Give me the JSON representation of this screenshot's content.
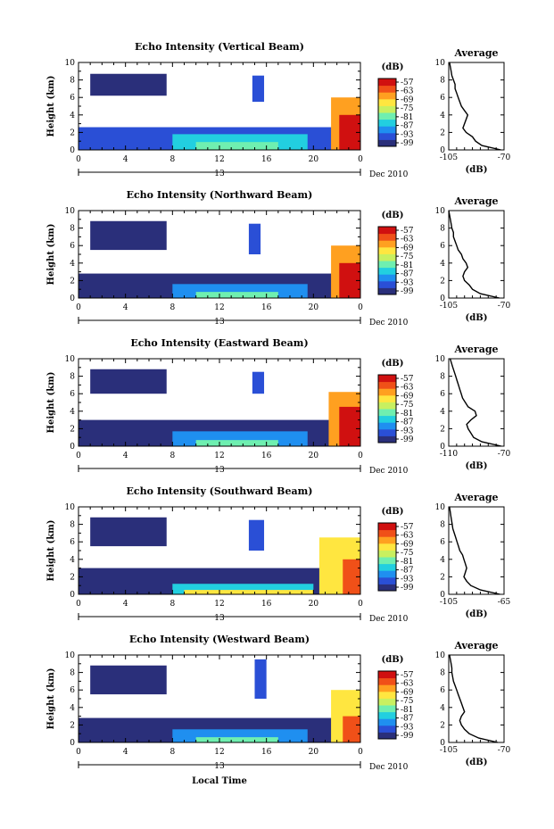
{
  "figure": {
    "x_axis_label": "Local Time",
    "date_label": "Dec 2010",
    "day_label": "13",
    "colorbar_unit": "(dB)",
    "colorbar_ticks": [
      "-57",
      "-63",
      "-69",
      "-75",
      "-81",
      "-87",
      "-93",
      "-99"
    ],
    "colorbar_colors": [
      "#2a2f7a",
      "#2a4fd6",
      "#1f8ff0",
      "#22cfe0",
      "#6fefb0",
      "#c8f060",
      "#ffe640",
      "#ffa020",
      "#f05018",
      "#d01010"
    ]
  },
  "chart_data": [
    {
      "type": "heatmap",
      "title": "Echo Intensity (Vertical Beam)",
      "ylabel": "Height (km)",
      "ylim": [
        0,
        10
      ],
      "xlim": [
        0,
        24
      ],
      "x_ticks": [
        "0",
        "4",
        "8",
        "12",
        "16",
        "20",
        "0"
      ],
      "y_ticks": [
        "0",
        "2",
        "4",
        "6",
        "8",
        "10"
      ],
      "zlim": [
        -99,
        -57
      ],
      "regions": [
        {
          "x0": 1,
          "x1": 7.5,
          "y0": 6.2,
          "y1": 8.7,
          "value": -95
        },
        {
          "x0": 14.8,
          "x1": 15.8,
          "y0": 5.5,
          "y1": 8.5,
          "value": -92
        },
        {
          "x0": 0,
          "x1": 24,
          "y0": 0,
          "y1": 2.6,
          "value": -94
        },
        {
          "x0": 8,
          "x1": 19.5,
          "y0": 0,
          "y1": 1.8,
          "value": -86
        },
        {
          "x0": 10,
          "x1": 17,
          "y0": 0,
          "y1": 0.9,
          "value": -79
        },
        {
          "x0": 21.5,
          "x1": 24,
          "y0": 0,
          "y1": 6,
          "value": -68
        },
        {
          "x0": 22.2,
          "x1": 24,
          "y0": 0,
          "y1": 4,
          "value": -60
        }
      ],
      "profile": {
        "title": "Average",
        "xlabel": "(dB)",
        "xlim": [
          -105,
          -70
        ],
        "x_ticks": [
          "-105",
          "-70"
        ],
        "height_km": [
          0,
          0.5,
          1,
          1.5,
          2,
          2.5,
          3,
          3.5,
          4,
          4.5,
          5,
          5.5,
          6,
          6.5,
          7,
          7.5,
          8,
          8.5,
          9,
          9.5,
          10
        ],
        "db": [
          -72,
          -84,
          -88,
          -90,
          -94,
          -96,
          -95,
          -94,
          -93,
          -95,
          -97,
          -98,
          -99,
          -100,
          -101,
          -101,
          -102,
          -103,
          -103.5,
          -104,
          -104.5
        ]
      }
    },
    {
      "type": "heatmap",
      "title": "Echo Intensity (Northward Beam)",
      "ylabel": "Height (km)",
      "ylim": [
        0,
        10
      ],
      "xlim": [
        0,
        24
      ],
      "x_ticks": [
        "0",
        "4",
        "8",
        "12",
        "16",
        "20",
        "0"
      ],
      "y_ticks": [
        "0",
        "2",
        "4",
        "6",
        "8",
        "10"
      ],
      "zlim": [
        -99,
        -57
      ],
      "regions": [
        {
          "x0": 1,
          "x1": 7.5,
          "y0": 5.5,
          "y1": 8.8,
          "value": -95
        },
        {
          "x0": 14.5,
          "x1": 15.5,
          "y0": 5,
          "y1": 8.5,
          "value": -92
        },
        {
          "x0": 0,
          "x1": 24,
          "y0": 0,
          "y1": 2.8,
          "value": -95
        },
        {
          "x0": 8,
          "x1": 19.5,
          "y0": 0,
          "y1": 1.6,
          "value": -87
        },
        {
          "x0": 10,
          "x1": 17,
          "y0": 0,
          "y1": 0.7,
          "value": -80
        },
        {
          "x0": 21.5,
          "x1": 24,
          "y0": 0,
          "y1": 6,
          "value": -68
        },
        {
          "x0": 22.2,
          "x1": 24,
          "y0": 0,
          "y1": 4,
          "value": -60
        }
      ],
      "profile": {
        "title": "Average",
        "xlabel": "(dB)",
        "xlim": [
          -105,
          -70
        ],
        "x_ticks": [
          "-105",
          "-70"
        ],
        "height_km": [
          0,
          0.5,
          1,
          1.5,
          2,
          2.5,
          3,
          3.5,
          4,
          4.5,
          5,
          5.5,
          6,
          6.5,
          7,
          7.5,
          8,
          8.5,
          9,
          9.5,
          10
        ],
        "db": [
          -73,
          -85,
          -90,
          -92,
          -95,
          -96,
          -95,
          -93,
          -94,
          -96,
          -97,
          -99,
          -100,
          -101,
          -102,
          -102,
          -103,
          -103.5,
          -104,
          -104.5,
          -105
        ]
      }
    },
    {
      "type": "heatmap",
      "title": "Echo Intensity (Eastward Beam)",
      "ylabel": "Height (km)",
      "ylim": [
        0,
        10
      ],
      "xlim": [
        0,
        24
      ],
      "x_ticks": [
        "0",
        "4",
        "8",
        "12",
        "16",
        "20",
        "0"
      ],
      "y_ticks": [
        "0",
        "2",
        "4",
        "6",
        "8",
        "10"
      ],
      "zlim": [
        -99,
        -57
      ],
      "regions": [
        {
          "x0": 1,
          "x1": 7.5,
          "y0": 6,
          "y1": 8.8,
          "value": -95
        },
        {
          "x0": 14.8,
          "x1": 15.8,
          "y0": 6,
          "y1": 8.5,
          "value": -92
        },
        {
          "x0": 0,
          "x1": 24,
          "y0": 0,
          "y1": 3,
          "value": -95
        },
        {
          "x0": 8,
          "x1": 19.5,
          "y0": 0,
          "y1": 1.7,
          "value": -87
        },
        {
          "x0": 10,
          "x1": 17,
          "y0": 0,
          "y1": 0.7,
          "value": -80
        },
        {
          "x0": 21.3,
          "x1": 24,
          "y0": 0,
          "y1": 6.2,
          "value": -68
        },
        {
          "x0": 22.2,
          "x1": 24,
          "y0": 0,
          "y1": 4.5,
          "value": -60
        }
      ],
      "profile": {
        "title": "Average",
        "xlabel": "(dB)",
        "xlim": [
          -110,
          -70
        ],
        "x_ticks": [
          "-110",
          "-70"
        ],
        "height_km": [
          0,
          0.5,
          1,
          1.5,
          2,
          2.5,
          3,
          3.5,
          4,
          4.5,
          5,
          5.5,
          6,
          6.5,
          7,
          7.5,
          8,
          8.5,
          9,
          9.5,
          10
        ],
        "db": [
          -72,
          -86,
          -92,
          -94,
          -96,
          -97,
          -94,
          -90,
          -91,
          -96,
          -98,
          -100,
          -101,
          -102,
          -103,
          -104,
          -105,
          -106,
          -107,
          -108,
          -109
        ]
      }
    },
    {
      "type": "heatmap",
      "title": "Echo Intensity (Southward Beam)",
      "ylabel": "Height (km)",
      "ylim": [
        0,
        10
      ],
      "xlim": [
        0,
        24
      ],
      "x_ticks": [
        "0",
        "4",
        "8",
        "12",
        "16",
        "20",
        "0"
      ],
      "y_ticks": [
        "0",
        "2",
        "4",
        "6",
        "8",
        "10"
      ],
      "zlim": [
        -99,
        -57
      ],
      "regions": [
        {
          "x0": 1,
          "x1": 7.5,
          "y0": 5.5,
          "y1": 8.8,
          "value": -95
        },
        {
          "x0": 14.5,
          "x1": 15.8,
          "y0": 5,
          "y1": 8.5,
          "value": -92
        },
        {
          "x0": 0,
          "x1": 24,
          "y0": 0,
          "y1": 3,
          "value": -95
        },
        {
          "x0": 8,
          "x1": 20,
          "y0": 0,
          "y1": 1.2,
          "value": -86
        },
        {
          "x0": 9,
          "x1": 20,
          "y0": 0,
          "y1": 0.5,
          "value": -70
        },
        {
          "x0": 20.5,
          "x1": 24,
          "y0": 0,
          "y1": 6.5,
          "value": -70
        },
        {
          "x0": 22.5,
          "x1": 24,
          "y0": 0,
          "y1": 4,
          "value": -62
        }
      ],
      "profile": {
        "title": "Average",
        "xlabel": "(dB)",
        "xlim": [
          -105,
          -65
        ],
        "x_ticks": [
          "-105",
          "-65"
        ],
        "height_km": [
          0,
          0.5,
          1,
          1.5,
          2,
          2.5,
          3,
          3.5,
          4,
          4.5,
          5,
          5.5,
          6,
          6.5,
          7,
          7.5,
          8,
          8.5,
          9,
          9.5,
          10
        ],
        "db": [
          -68,
          -82,
          -89,
          -92,
          -94,
          -93,
          -92,
          -93,
          -94,
          -95,
          -97,
          -98,
          -99,
          -100,
          -101,
          -102,
          -102.5,
          -103,
          -103.5,
          -104,
          -104.5
        ]
      }
    },
    {
      "type": "heatmap",
      "title": "Echo Intensity (Westward Beam)",
      "ylabel": "Height (km)",
      "ylim": [
        0,
        10
      ],
      "xlim": [
        0,
        24
      ],
      "x_ticks": [
        "0",
        "4",
        "8",
        "12",
        "16",
        "20",
        "0"
      ],
      "y_ticks": [
        "0",
        "2",
        "4",
        "6",
        "8",
        "10"
      ],
      "zlim": [
        -99,
        -57
      ],
      "regions": [
        {
          "x0": 1,
          "x1": 7.5,
          "y0": 5.5,
          "y1": 8.8,
          "value": -95
        },
        {
          "x0": 15,
          "x1": 16,
          "y0": 5,
          "y1": 9.5,
          "value": -92
        },
        {
          "x0": 0,
          "x1": 24,
          "y0": 0,
          "y1": 2.8,
          "value": -95
        },
        {
          "x0": 8,
          "x1": 19.5,
          "y0": 0,
          "y1": 1.5,
          "value": -87
        },
        {
          "x0": 10,
          "x1": 17,
          "y0": 0,
          "y1": 0.6,
          "value": -80
        },
        {
          "x0": 21.5,
          "x1": 24,
          "y0": 0,
          "y1": 6,
          "value": -70
        },
        {
          "x0": 22.5,
          "x1": 24,
          "y0": 0,
          "y1": 3,
          "value": -62
        }
      ],
      "profile": {
        "title": "Average",
        "xlabel": "(dB)",
        "xlim": [
          -105,
          -70
        ],
        "x_ticks": [
          "-105",
          "-70"
        ],
        "height_km": [
          0,
          0.5,
          1,
          1.5,
          2,
          2.5,
          3,
          3.5,
          4,
          4.5,
          5,
          5.5,
          6,
          6.5,
          7,
          7.5,
          8,
          8.5,
          9,
          9.5,
          10
        ],
        "db": [
          -74,
          -86,
          -92,
          -95,
          -97,
          -98,
          -97,
          -95,
          -96,
          -97,
          -98,
          -99,
          -100,
          -101,
          -102,
          -102.5,
          -103,
          -103,
          -103.5,
          -104,
          -104.5
        ]
      }
    }
  ]
}
